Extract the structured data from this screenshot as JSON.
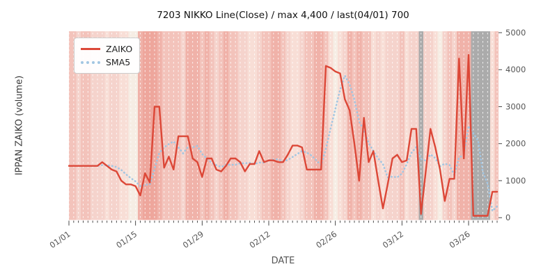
{
  "chart_data": {
    "type": "line",
    "title": "7203 NIKKO Line(Close) / max 4,400 / last(04/01) 700",
    "xlabel": "DATE",
    "ylabel": "IPPAN ZAIKO (volume)",
    "ylim": [
      0,
      5000
    ],
    "yticks": [
      0,
      1000,
      2000,
      3000,
      4000,
      5000
    ],
    "xticks": [
      {
        "label": "01/01",
        "index": 0
      },
      {
        "label": "01/15",
        "index": 14
      },
      {
        "label": "01/29",
        "index": 28
      },
      {
        "label": "02/12",
        "index": 42
      },
      {
        "label": "02/26",
        "index": 56
      },
      {
        "label": "03/12",
        "index": 70
      },
      {
        "label": "03/26",
        "index": 84
      }
    ],
    "grid": "white dashed vertical line per day",
    "legend_position": "upper-left",
    "legend": [
      {
        "label": "ZAIKO",
        "style": "solid",
        "color": "#dc4737"
      },
      {
        "label": "SMA5",
        "style": "dotted",
        "color": "#a2c6e2"
      }
    ],
    "dates": [
      "01/01",
      "01/02",
      "01/03",
      "01/04",
      "01/05",
      "01/06",
      "01/07",
      "01/08",
      "01/09",
      "01/10",
      "01/11",
      "01/12",
      "01/13",
      "01/14",
      "01/15",
      "01/16",
      "01/17",
      "01/18",
      "01/19",
      "01/20",
      "01/21",
      "01/22",
      "01/23",
      "01/24",
      "01/25",
      "01/26",
      "01/27",
      "01/28",
      "01/29",
      "01/30",
      "01/31",
      "02/01",
      "02/02",
      "02/03",
      "02/04",
      "02/05",
      "02/06",
      "02/07",
      "02/08",
      "02/09",
      "02/10",
      "02/11",
      "02/12",
      "02/13",
      "02/14",
      "02/15",
      "02/16",
      "02/17",
      "02/18",
      "02/19",
      "02/20",
      "02/21",
      "02/22",
      "02/23",
      "02/24",
      "02/25",
      "02/26",
      "02/27",
      "02/28",
      "03/01",
      "03/02",
      "03/03",
      "03/04",
      "03/05",
      "03/06",
      "03/07",
      "03/08",
      "03/09",
      "03/10",
      "03/11",
      "03/12",
      "03/13",
      "03/14",
      "03/15",
      "03/16",
      "03/17",
      "03/18",
      "03/19",
      "03/20",
      "03/21",
      "03/22",
      "03/23",
      "03/24",
      "03/25",
      "03/26",
      "03/27",
      "03/28",
      "03/29",
      "03/30",
      "03/31",
      "04/01"
    ],
    "series": [
      {
        "name": "ZAIKO",
        "color": "#dc4737",
        "style": "solid",
        "values": [
          1400,
          1400,
          1400,
          1400,
          1400,
          1400,
          1400,
          1500,
          1400,
          1300,
          1250,
          1000,
          900,
          900,
          850,
          600,
          1200,
          950,
          3000,
          3000,
          1350,
          1650,
          1300,
          2200,
          2200,
          2200,
          1600,
          1500,
          1100,
          1600,
          1600,
          1300,
          1250,
          1400,
          1600,
          1600,
          1500,
          1250,
          1450,
          1450,
          1800,
          1500,
          1550,
          1550,
          1500,
          1500,
          1700,
          1950,
          1950,
          1900,
          1300,
          1300,
          1300,
          1300,
          4100,
          4050,
          3950,
          3900,
          3200,
          2900,
          2000,
          1000,
          2700,
          1500,
          1800,
          1000,
          250,
          900,
          1600,
          1700,
          1500,
          1550,
          2400,
          2400,
          100,
          1250,
          2400,
          1900,
          1300,
          450,
          1050,
          1050,
          4300,
          1600,
          4400,
          50,
          50,
          50,
          50,
          700,
          700
        ]
      },
      {
        "name": "SMA5",
        "color": "#a2c6e2",
        "style": "dotted",
        "derived_from": "ZAIKO",
        "window": 5
      }
    ],
    "stats": {
      "max": "4,400",
      "last_date": "04/01",
      "last_value": 700
    },
    "background_bands": {
      "palette": {
        "C1": "#f6ede4",
        "C2": "#f8ded6",
        "C3": "#f5d3cc",
        "C4": "#f3c3bb",
        "C5": "#f0b2a9",
        "C6": "#eea69c",
        "G": "#ababab"
      },
      "levels": [
        "C4",
        "C4",
        "C3",
        "C4",
        "C4",
        "C3",
        "C3",
        "C3",
        "C2",
        "C3",
        "C3",
        "C2",
        "C2",
        "C1",
        "C1",
        "C5",
        "C6",
        "C6",
        "C6",
        "C5",
        "C4",
        "C4",
        "C4",
        "C4",
        "C3",
        "C5",
        "C5",
        "C5",
        "C4",
        "C5",
        "C4",
        "C3",
        "C4",
        "C5",
        "C4",
        "C4",
        "C3",
        "C3",
        "C2",
        "C2",
        "C3",
        "C4",
        "C4",
        "C5",
        "C5",
        "C4",
        "C3",
        "C2",
        "C2",
        "C3",
        "C4",
        "C4",
        "C5",
        "C5",
        "C4",
        "C2",
        "C1",
        "C2",
        "C3",
        "C5",
        "C4",
        "C5",
        "C4",
        "C4",
        "C2",
        "C3",
        "C2",
        "C3",
        "C3",
        "C3",
        "C4",
        "C2",
        "C3",
        "C3",
        "G",
        "C3",
        "C3",
        "C2",
        "C1",
        "C3",
        "C4",
        "C3",
        "C5",
        "C5",
        "C5",
        "G",
        "G",
        "G",
        "G",
        "C2",
        "C4"
      ]
    },
    "axis_colors": {
      "tick": "#333333",
      "tick_label": "#555555",
      "title": "#111111",
      "axis_label": "#3a3a3a"
    }
  }
}
